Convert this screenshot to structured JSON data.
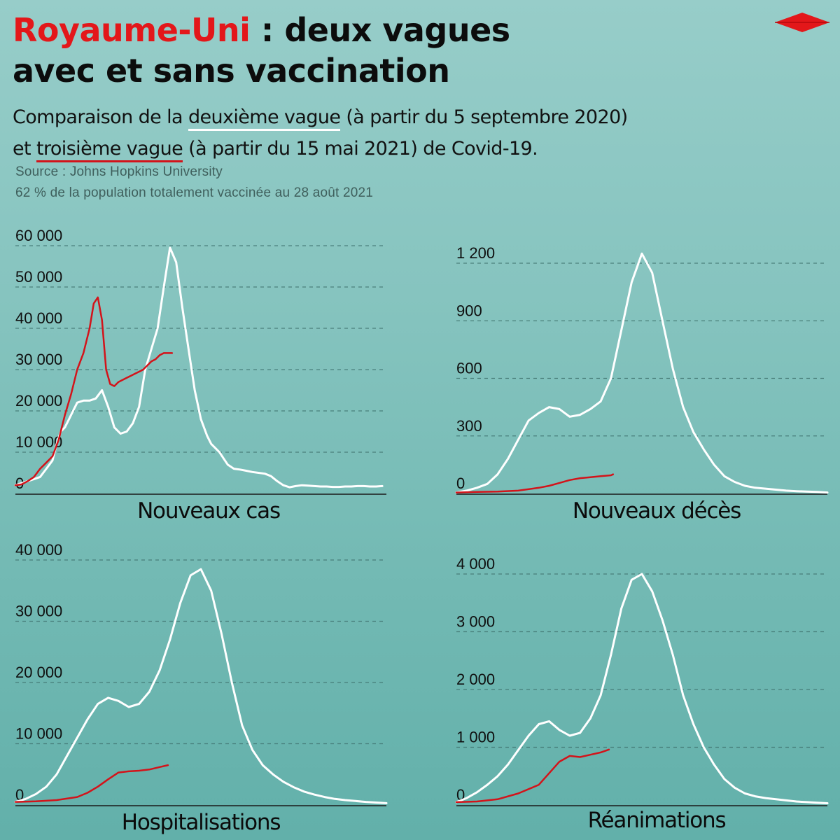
{
  "header": {
    "title_accent": "Royaume-Uni",
    "title_rest": " : deux vagues",
    "title_line2": "avec et sans vaccination",
    "subtitle_p1": "Comparaison de la ",
    "subtitle_second_wave": "deuxième vague",
    "subtitle_p2": " (à partir du 5 septembre 2020)",
    "subtitle_p3": "et ",
    "subtitle_third_wave": "troisième vague",
    "subtitle_p4": " (à partir du 15 mai 2021) de Covid-19.",
    "source": "Source : Johns Hopkins University",
    "note": "62 % de la population totalement vaccinée au 28 août 2021"
  },
  "colors": {
    "second_wave": "#ffffff",
    "third_wave": "#d3131a",
    "accent": "#e3171a",
    "gridline": "#3d6f6b"
  },
  "chart_data": [
    {
      "type": "line",
      "title": "Nouveaux cas",
      "ylim": [
        0,
        60000
      ],
      "yticks": [
        0,
        10000,
        20000,
        30000,
        40000,
        50000,
        60000
      ],
      "ytick_labels": [
        "0",
        "10 000",
        "20 000",
        "30 000",
        "40 000",
        "50 000",
        "60 000"
      ],
      "xlim": [
        0,
        180
      ],
      "grid": true,
      "series": [
        {
          "wave": "deuxième vague",
          "x": [
            0,
            3,
            6,
            9,
            12,
            15,
            18,
            20,
            22,
            24,
            26,
            28,
            30,
            33,
            36,
            39,
            42,
            45,
            48,
            51,
            54,
            57,
            60,
            63,
            66,
            69,
            72,
            75,
            78,
            81,
            84,
            87,
            90,
            93,
            95,
            97,
            99,
            101,
            103,
            106,
            109,
            112,
            115,
            118,
            121,
            124,
            127,
            130,
            133,
            136,
            139,
            142,
            145,
            148,
            151,
            154,
            157,
            160,
            163,
            166,
            169,
            172,
            175,
            178
          ],
          "values": [
            2000,
            2500,
            3000,
            3500,
            4000,
            6000,
            8000,
            12000,
            15000,
            16000,
            18000,
            20000,
            22000,
            22500,
            22500,
            23000,
            25000,
            21000,
            16000,
            14500,
            15000,
            17000,
            21000,
            30000,
            35000,
            40000,
            50000,
            59500,
            56000,
            45000,
            35000,
            25000,
            18000,
            14000,
            12000,
            11000,
            10000,
            8500,
            7000,
            6000,
            5800,
            5500,
            5200,
            5000,
            4800,
            4200,
            3000,
            2000,
            1500,
            1800,
            2000,
            1900,
            1800,
            1700,
            1700,
            1600,
            1600,
            1700,
            1700,
            1800,
            1800,
            1700,
            1700,
            1800
          ]
        },
        {
          "wave": "troisième vague",
          "x": [
            0,
            3,
            6,
            9,
            12,
            15,
            18,
            21,
            24,
            27,
            30,
            33,
            36,
            38,
            40,
            42,
            44,
            46,
            48,
            50,
            52,
            54,
            56,
            58,
            60,
            62,
            64,
            66,
            68,
            70,
            72,
            74,
            76
          ],
          "values": [
            2000,
            2200,
            3000,
            4000,
            6000,
            7500,
            9000,
            13000,
            19000,
            24000,
            30000,
            34000,
            40000,
            46000,
            47500,
            42000,
            30000,
            26500,
            26000,
            27000,
            27500,
            28000,
            28500,
            29000,
            29500,
            30000,
            31000,
            32000,
            32500,
            33500,
            34000,
            34000,
            34000
          ]
        }
      ]
    },
    {
      "type": "line",
      "title": "Nouveaux décès",
      "ylim": [
        0,
        1200
      ],
      "yticks": [
        0,
        300,
        600,
        900,
        1200
      ],
      "ytick_labels": [
        "0",
        "300",
        "600",
        "900",
        "1 200"
      ],
      "xlim": [
        0,
        180
      ],
      "grid": true,
      "series": [
        {
          "wave": "deuxième vague",
          "x": [
            0,
            5,
            10,
            15,
            20,
            25,
            30,
            35,
            40,
            45,
            50,
            55,
            60,
            65,
            70,
            75,
            80,
            85,
            90,
            95,
            100,
            105,
            110,
            115,
            120,
            125,
            130,
            135,
            140,
            145,
            150,
            155,
            160,
            165,
            170,
            175,
            180
          ],
          "values": [
            5,
            15,
            30,
            50,
            100,
            180,
            280,
            380,
            420,
            450,
            440,
            400,
            410,
            440,
            480,
            600,
            850,
            1100,
            1250,
            1150,
            900,
            650,
            450,
            320,
            230,
            150,
            90,
            60,
            40,
            30,
            25,
            20,
            15,
            12,
            10,
            8,
            5
          ]
        },
        {
          "wave": "troisième vague",
          "x": [
            0,
            10,
            20,
            30,
            40,
            45,
            50,
            55,
            60,
            65,
            70,
            75,
            76
          ],
          "values": [
            5,
            8,
            10,
            15,
            30,
            40,
            55,
            70,
            80,
            85,
            90,
            95,
            100
          ]
        }
      ]
    },
    {
      "type": "line",
      "title": "Hospitalisations",
      "ylim": [
        0,
        40000
      ],
      "yticks": [
        0,
        10000,
        20000,
        30000,
        40000
      ],
      "ytick_labels": [
        "0",
        "10 000",
        "20 000",
        "30 000",
        "40 000"
      ],
      "xlim": [
        0,
        180
      ],
      "grid": true,
      "series": [
        {
          "wave": "deuxième vague",
          "x": [
            0,
            5,
            10,
            15,
            20,
            25,
            30,
            35,
            40,
            45,
            50,
            55,
            60,
            65,
            70,
            75,
            80,
            85,
            90,
            95,
            100,
            105,
            110,
            115,
            120,
            125,
            130,
            135,
            140,
            145,
            150,
            155,
            160,
            165,
            170,
            175,
            180
          ],
          "values": [
            500,
            1000,
            1800,
            3000,
            5000,
            8000,
            11000,
            14000,
            16500,
            17500,
            17000,
            16000,
            16500,
            18500,
            22000,
            27000,
            33000,
            37500,
            38500,
            35000,
            28000,
            20000,
            13000,
            9000,
            6500,
            5000,
            3800,
            2900,
            2200,
            1700,
            1300,
            1000,
            800,
            650,
            500,
            400,
            300
          ]
        },
        {
          "wave": "troisième vague",
          "x": [
            0,
            10,
            20,
            30,
            35,
            40,
            45,
            50,
            55,
            60,
            65,
            70,
            74
          ],
          "values": [
            500,
            600,
            800,
            1300,
            2000,
            3000,
            4200,
            5300,
            5500,
            5600,
            5800,
            6200,
            6500
          ]
        }
      ]
    },
    {
      "type": "line",
      "title": "Réanimations",
      "ylim": [
        0,
        4000
      ],
      "yticks": [
        0,
        1000,
        2000,
        3000,
        4000
      ],
      "ytick_labels": [
        "0",
        "1 000",
        "2 000",
        "3 000",
        "4 000"
      ],
      "xlim": [
        0,
        180
      ],
      "grid": true,
      "series": [
        {
          "wave": "deuxième vague",
          "x": [
            0,
            5,
            10,
            15,
            20,
            25,
            30,
            35,
            40,
            45,
            50,
            55,
            60,
            65,
            70,
            75,
            80,
            85,
            90,
            95,
            100,
            105,
            110,
            115,
            120,
            125,
            130,
            135,
            140,
            145,
            150,
            155,
            160,
            165,
            170,
            175,
            180
          ],
          "values": [
            50,
            120,
            220,
            350,
            500,
            700,
            950,
            1200,
            1400,
            1450,
            1300,
            1200,
            1250,
            1500,
            1900,
            2600,
            3400,
            3900,
            4000,
            3700,
            3200,
            2600,
            1900,
            1400,
            1000,
            700,
            450,
            300,
            200,
            150,
            120,
            100,
            80,
            60,
            50,
            40,
            30
          ]
        },
        {
          "wave": "troisième vague",
          "x": [
            0,
            10,
            20,
            30,
            40,
            45,
            50,
            55,
            60,
            65,
            70,
            74
          ],
          "values": [
            50,
            60,
            100,
            200,
            350,
            550,
            750,
            850,
            830,
            870,
            910,
            960
          ]
        }
      ]
    }
  ]
}
